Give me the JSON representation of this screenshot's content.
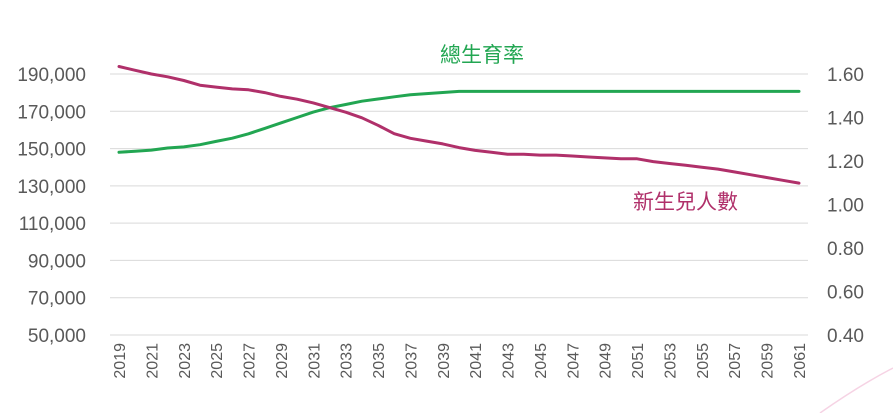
{
  "chart_data": {
    "type": "line",
    "title": "",
    "x": [
      2019,
      2020,
      2021,
      2022,
      2023,
      2024,
      2025,
      2026,
      2027,
      2028,
      2029,
      2030,
      2031,
      2032,
      2033,
      2034,
      2035,
      2036,
      2037,
      2038,
      2039,
      2040,
      2041,
      2042,
      2043,
      2044,
      2045,
      2046,
      2047,
      2048,
      2049,
      2050,
      2051,
      2052,
      2053,
      2054,
      2055,
      2056,
      2057,
      2058,
      2059,
      2060,
      2061
    ],
    "x_tick_labels": [
      "2019",
      "2021",
      "2023",
      "2025",
      "2027",
      "2029",
      "2031",
      "2033",
      "2035",
      "2037",
      "2039",
      "2041",
      "2043",
      "2045",
      "2047",
      "2049",
      "2051",
      "2053",
      "2055",
      "2057",
      "2059",
      "2061"
    ],
    "y_left": {
      "range": [
        50000,
        190000
      ],
      "tick_labels": [
        "190,000",
        "170,000",
        "150,000",
        "130,000",
        "110,000",
        "90,000",
        "70,000",
        "50,000"
      ]
    },
    "y_right": {
      "range": [
        0.4,
        1.6
      ],
      "tick_labels": [
        "1.60",
        "1.40",
        "1.20",
        "1.00",
        "0.80",
        "0.60",
        "0.40"
      ]
    },
    "grid": true,
    "series": [
      {
        "name": "總生育率",
        "axis": "right",
        "color": "#22a652",
        "values": [
          1.24,
          1.245,
          1.25,
          1.26,
          1.265,
          1.275,
          1.29,
          1.305,
          1.325,
          1.35,
          1.375,
          1.4,
          1.425,
          1.445,
          1.46,
          1.475,
          1.485,
          1.495,
          1.505,
          1.51,
          1.515,
          1.52,
          1.52,
          1.52,
          1.52,
          1.52,
          1.52,
          1.52,
          1.52,
          1.52,
          1.52,
          1.52,
          1.52,
          1.52,
          1.52,
          1.52,
          1.52,
          1.52,
          1.52,
          1.52,
          1.52,
          1.52,
          1.52
        ]
      },
      {
        "name": "新生兒人數",
        "axis": "left",
        "color": "#b0306a",
        "values": [
          194000,
          192000,
          190000,
          188500,
          186500,
          184000,
          183000,
          182000,
          181500,
          180000,
          178000,
          176500,
          174500,
          172000,
          169500,
          166500,
          162500,
          158000,
          155500,
          154000,
          152500,
          150500,
          149000,
          148000,
          147000,
          147000,
          146500,
          146500,
          146000,
          145500,
          145000,
          144500,
          144500,
          143000,
          142000,
          141000,
          140000,
          139000,
          137500,
          136000,
          134500,
          133000,
          131500
        ]
      }
    ]
  }
}
